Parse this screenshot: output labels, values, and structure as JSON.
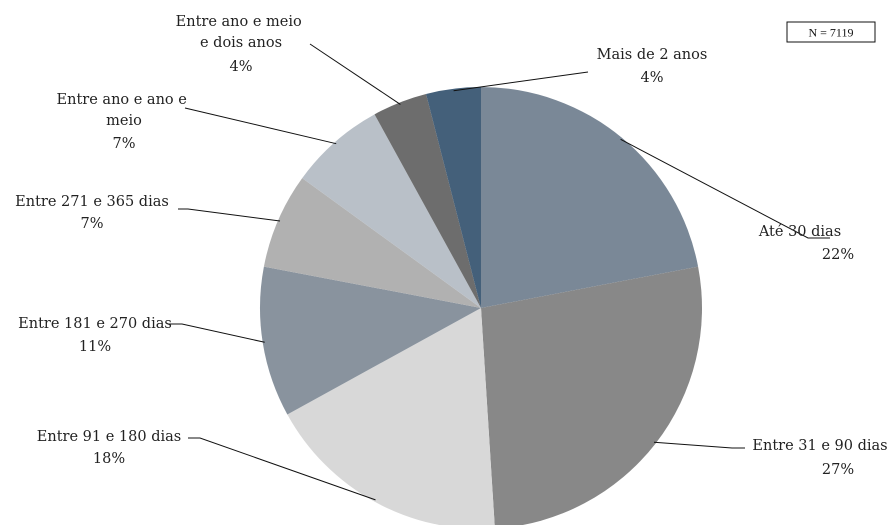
{
  "chart_data": {
    "type": "pie",
    "note": "N = 7119",
    "slices": [
      {
        "label": "Até 30 dias",
        "value": 22,
        "value_label": "22%",
        "color": "#7a8897"
      },
      {
        "label": "Entre 31 e 90 dias",
        "value": 27,
        "value_label": "27%",
        "color": "#888888"
      },
      {
        "label": "Entre 91 e 180 dias",
        "value": 18,
        "value_label": "18%",
        "color": "#d8d8d8"
      },
      {
        "label": "Entre 181 e 270 dias",
        "value": 11,
        "value_label": "11%",
        "color": "#89939e"
      },
      {
        "label": "Entre 271 e 365 dias",
        "value": 7,
        "value_label": "7%",
        "color": "#b1b1b1"
      },
      {
        "label": "Entre ano e ano e meio",
        "value": 7,
        "value_label": "7%",
        "color": "#b9c0c8"
      },
      {
        "label": "Entre ano e meio e dois anos",
        "value": 4,
        "value_label": "4%",
        "color": "#6d6d6d"
      },
      {
        "label": "Mais de 2 anos",
        "value": 4,
        "value_label": "4%",
        "color": "#44607a"
      }
    ]
  }
}
